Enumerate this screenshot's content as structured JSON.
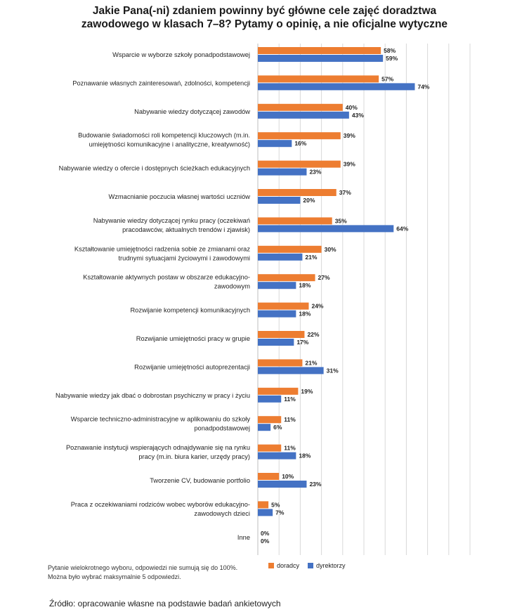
{
  "title": {
    "line1": "Jakie Pana(-ni) zdaniem powinny być główne cele zajęć doradztwa",
    "line2": "zawodowego w klasach 7–8? Pytamy o opinię, a nie oficjalne wytyczne"
  },
  "colors": {
    "doradcy": "#ED7D31",
    "dyrektorzy": "#4472C4"
  },
  "chart_data": {
    "type": "bar",
    "orientation": "horizontal",
    "categories": [
      [
        "Wsparcie w wyborze szkoły ponadpodstawowej"
      ],
      [
        "Poznawanie własnych zainteresowań, zdolności, kompetencji"
      ],
      [
        "Nabywanie wiedzy dotyczącej zawodów"
      ],
      [
        "Budowanie świadomości roli kompetencji kluczowych (m.in.",
        "umiejętności komunikacyjne i analityczne, kreatywność)"
      ],
      [
        "Nabywanie wiedzy o ofercie i dostępnych ścieżkach edukacyjnych"
      ],
      [
        "Wzmacnianie poczucia własnej wartości uczniów"
      ],
      [
        "Nabywanie wiedzy dotyczącej rynku pracy (oczekiwań",
        "pracodawców, aktualnych trendów i zjawisk)"
      ],
      [
        "Kształtowanie umiejętności radzenia sobie ze zmianami oraz",
        "trudnymi sytuacjami życiowymi i zawodowymi"
      ],
      [
        "Kształtowanie aktywnych postaw w obszarze edukacyjno-",
        "zawodowym"
      ],
      [
        "Rozwijanie kompetencji komunikacyjnych"
      ],
      [
        "Rozwijanie umiejętności pracy w grupie"
      ],
      [
        "Rozwijanie umiejętności autoprezentacji"
      ],
      [
        "Nabywanie wiedzy jak dbać o dobrostan psychiczny w pracy i życiu"
      ],
      [
        "Wsparcie techniczno-administracyjne w aplikowaniu do szkoły",
        "ponadpodstawowej"
      ],
      [
        "Poznawanie instytucji wspierających odnajdywanie się na rynku",
        "pracy (m.in. biura karier, urzędy pracy)"
      ],
      [
        "Tworzenie CV, budowanie portfolio"
      ],
      [
        "Praca z oczekiwaniami rodziców wobec wyborów edukacyjno-",
        "zawodowych dzieci"
      ],
      [
        "Inne"
      ]
    ],
    "series": [
      {
        "name": "doradcy",
        "values": [
          58,
          57,
          40,
          39,
          39,
          37,
          35,
          30,
          27,
          24,
          22,
          21,
          19,
          11,
          11,
          10,
          5,
          0
        ]
      },
      {
        "name": "dyrektorzy",
        "values": [
          59,
          74,
          43,
          16,
          23,
          20,
          64,
          21,
          18,
          18,
          17,
          31,
          11,
          6,
          18,
          23,
          7,
          0
        ]
      }
    ],
    "value_suffix": "%",
    "xlim": [
      0,
      100
    ],
    "grid": true,
    "legend_position": "bottom"
  },
  "note": {
    "line1": "Pytanie wielokrotnego wyboru, odpowiedzi nie sumują się do 100%.",
    "line2": "Można było wybrać maksymalnie 5 odpowiedzi."
  },
  "legend": {
    "doradcy": "doradcy",
    "dyrektorzy": "dyrektorzy"
  },
  "source": "Źródło: opracowanie własne na podstawie badań ankietowych"
}
